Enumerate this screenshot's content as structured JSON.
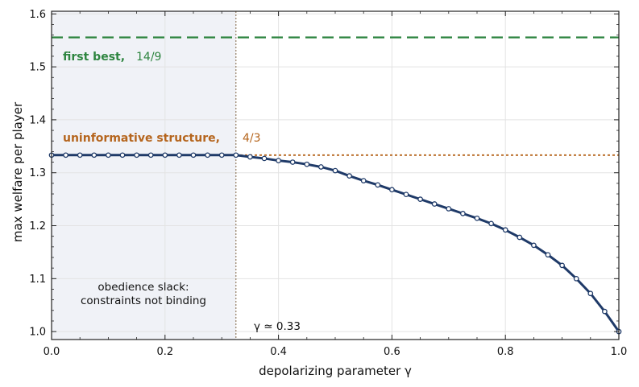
{
  "chart_data": {
    "type": "line",
    "title": "",
    "xlabel": "depolarizing parameter γ",
    "ylabel": "max welfare per player",
    "xlim": [
      0.0,
      1.0
    ],
    "ylim": [
      0.985,
      1.605
    ],
    "grid": true,
    "x_ticks": [
      0.0,
      0.2,
      0.4,
      0.6,
      0.8,
      1.0
    ],
    "x_tick_labels": [
      "0.0",
      "0.2",
      "0.4",
      "0.6",
      "0.8",
      "1.0"
    ],
    "y_ticks": [
      1.0,
      1.1,
      1.2,
      1.3,
      1.4,
      1.5,
      1.6
    ],
    "y_tick_labels": [
      "1.0",
      "1.1",
      "1.2",
      "1.3",
      "1.4",
      "1.5",
      "1.6"
    ],
    "shaded_region": {
      "x_range": [
        0.0,
        0.325
      ],
      "label_lines": [
        "obedience slack:",
        "constraints not binding"
      ]
    },
    "threshold": {
      "x": 0.325,
      "label": "γ ≃ 0.33"
    },
    "reference_lines": [
      {
        "y": 1.5556,
        "style": "dashed",
        "color": "#2e8540",
        "label_bold": "first best,",
        "label_value": "14/9"
      },
      {
        "y": 1.3333,
        "style": "dotted",
        "color": "#b5651d",
        "label_bold": "uninformative structure,",
        "label_value": "4/3"
      }
    ],
    "series": [
      {
        "color": "#1f3a68",
        "x": [
          0.0,
          0.025,
          0.05,
          0.075,
          0.1,
          0.125,
          0.15,
          0.175,
          0.2,
          0.225,
          0.25,
          0.275,
          0.3,
          0.325,
          0.35,
          0.375,
          0.4,
          0.425,
          0.45,
          0.475,
          0.5,
          0.525,
          0.55,
          0.575,
          0.6,
          0.625,
          0.65,
          0.675,
          0.7,
          0.725,
          0.75,
          0.775,
          0.8,
          0.825,
          0.85,
          0.875,
          0.9,
          0.925,
          0.95,
          0.975,
          1.0
        ],
        "values": [
          1.3333,
          1.3333,
          1.3333,
          1.3333,
          1.3333,
          1.3333,
          1.3333,
          1.3333,
          1.3333,
          1.3333,
          1.3333,
          1.3333,
          1.3333,
          1.3333,
          1.33,
          1.327,
          1.323,
          1.32,
          1.316,
          1.311,
          1.304,
          1.294,
          1.285,
          1.277,
          1.268,
          1.259,
          1.25,
          1.241,
          1.232,
          1.223,
          1.214,
          1.204,
          1.192,
          1.178,
          1.163,
          1.145,
          1.125,
          1.1,
          1.072,
          1.038,
          1.0
        ]
      }
    ]
  }
}
